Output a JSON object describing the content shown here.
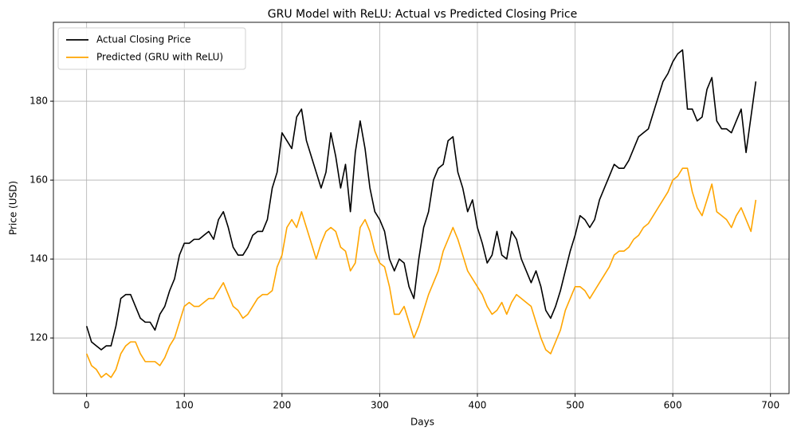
{
  "chart_data": {
    "type": "line",
    "title": "GRU Model with ReLU: Actual vs Predicted Closing Price",
    "xlabel": "Days",
    "ylabel": "Price (USD)",
    "x": [
      0,
      5,
      10,
      15,
      20,
      25,
      30,
      35,
      40,
      45,
      50,
      55,
      60,
      65,
      70,
      75,
      80,
      85,
      90,
      95,
      100,
      105,
      110,
      115,
      120,
      125,
      130,
      135,
      140,
      145,
      150,
      155,
      160,
      165,
      170,
      175,
      180,
      185,
      190,
      195,
      200,
      205,
      210,
      215,
      220,
      225,
      230,
      235,
      240,
      245,
      250,
      255,
      260,
      265,
      270,
      275,
      280,
      285,
      290,
      295,
      300,
      305,
      310,
      315,
      320,
      325,
      330,
      335,
      340,
      345,
      350,
      355,
      360,
      365,
      370,
      375,
      380,
      385,
      390,
      395,
      400,
      405,
      410,
      415,
      420,
      425,
      430,
      435,
      440,
      445,
      450,
      455,
      460,
      465,
      470,
      475,
      480,
      485,
      490,
      495,
      500,
      505,
      510,
      515,
      520,
      525,
      530,
      535,
      540,
      545,
      550,
      555,
      560,
      565,
      570,
      575,
      580,
      585,
      590,
      595,
      600,
      605,
      610,
      615,
      620,
      625,
      630,
      635,
      640,
      645,
      650,
      655,
      660,
      665,
      670,
      675,
      680,
      685
    ],
    "series": [
      {
        "name": "Actual Closing Price",
        "color": "#000000",
        "values": [
          123,
          119,
          118,
          117,
          118,
          118,
          123,
          130,
          131,
          131,
          128,
          125,
          124,
          124,
          122,
          126,
          128,
          132,
          135,
          141,
          144,
          144,
          145,
          145,
          146,
          147,
          145,
          150,
          152,
          148,
          143,
          141,
          141,
          143,
          146,
          147,
          147,
          150,
          158,
          162,
          172,
          170,
          168,
          176,
          178,
          170,
          166,
          162,
          158,
          162,
          172,
          166,
          158,
          164,
          152,
          167,
          175,
          168,
          158,
          152,
          150,
          147,
          140,
          137,
          140,
          139,
          133,
          130,
          140,
          148,
          152,
          160,
          163,
          164,
          170,
          171,
          162,
          158,
          152,
          155,
          148,
          144,
          139,
          141,
          147,
          141,
          140,
          147,
          145,
          140,
          137,
          134,
          137,
          133,
          127,
          125,
          128,
          132,
          137,
          142,
          146,
          151,
          150,
          148,
          150,
          155,
          158,
          161,
          164,
          163,
          163,
          165,
          168,
          171,
          172,
          173,
          177,
          181,
          185,
          187,
          190,
          192,
          193,
          178,
          178,
          175,
          176,
          183,
          186,
          175,
          173,
          173,
          172,
          175,
          178,
          167,
          176,
          185
        ]
      },
      {
        "name": "Predicted (GRU with ReLU)",
        "color": "#ffa500",
        "values": [
          116,
          113,
          112,
          110,
          111,
          110,
          112,
          116,
          118,
          119,
          119,
          116,
          114,
          114,
          114,
          113,
          115,
          118,
          120,
          124,
          128,
          129,
          128,
          128,
          129,
          130,
          130,
          132,
          134,
          131,
          128,
          127,
          125,
          126,
          128,
          130,
          131,
          131,
          132,
          138,
          141,
          148,
          150,
          148,
          152,
          148,
          144,
          140,
          144,
          147,
          148,
          147,
          143,
          142,
          137,
          139,
          148,
          150,
          147,
          142,
          139,
          138,
          133,
          126,
          126,
          128,
          124,
          120,
          123,
          127,
          131,
          134,
          137,
          142,
          145,
          148,
          145,
          141,
          137,
          135,
          133,
          131,
          128,
          126,
          127,
          129,
          126,
          129,
          131,
          130,
          129,
          128,
          124,
          120,
          117,
          116,
          119,
          122,
          127,
          130,
          133,
          133,
          132,
          130,
          132,
          134,
          136,
          138,
          141,
          142,
          142,
          143,
          145,
          146,
          148,
          149,
          151,
          153,
          155,
          157,
          160,
          161,
          163,
          163,
          157,
          153,
          151,
          155,
          159,
          152,
          151,
          150,
          148,
          151,
          153,
          150,
          147,
          155
        ]
      }
    ],
    "xlim": [
      -34,
      719
    ],
    "ylim": [
      105.9,
      200
    ],
    "xticks": [
      0,
      100,
      200,
      300,
      400,
      500,
      600,
      700
    ],
    "yticks": [
      120,
      140,
      160,
      180
    ],
    "grid": true,
    "legend": "upper-left"
  }
}
